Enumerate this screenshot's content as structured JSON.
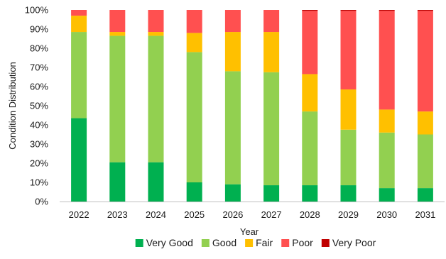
{
  "chart_data": {
    "type": "bar",
    "stacked": true,
    "xlabel": "Year",
    "ylabel": "Condition Distribution",
    "ylim": [
      0,
      100
    ],
    "y_ticks": [
      "0%",
      "10%",
      "20%",
      "30%",
      "40%",
      "50%",
      "60%",
      "70%",
      "80%",
      "90%",
      "100%"
    ],
    "grid": false,
    "legend_position": "bottom",
    "categories": [
      "2022",
      "2023",
      "2024",
      "2025",
      "2026",
      "2027",
      "2028",
      "2029",
      "2030",
      "2031"
    ],
    "series": [
      {
        "name": "Very Good",
        "color": "#00b050",
        "values": [
          43.5,
          20.5,
          20.5,
          10,
          9,
          8.5,
          8.5,
          8.5,
          7,
          7
        ]
      },
      {
        "name": "Good",
        "color": "#92d050",
        "values": [
          45.0,
          66.0,
          66.0,
          68,
          59,
          59.0,
          38.5,
          29.0,
          29,
          28
        ]
      },
      {
        "name": "Fair",
        "color": "#ffc000",
        "values": [
          8.5,
          2.0,
          2.0,
          10,
          20.5,
          21.0,
          19.5,
          21.0,
          12,
          12
        ]
      },
      {
        "name": "Poor",
        "color": "#ff5050",
        "values": [
          3.0,
          11.5,
          11.5,
          12,
          11.5,
          11.5,
          33.0,
          41.0,
          51.5,
          52.5
        ]
      },
      {
        "name": "Very Poor",
        "color": "#c00000",
        "values": [
          0,
          0,
          0,
          0,
          0,
          0,
          0.5,
          0.5,
          0.5,
          0.5
        ]
      }
    ]
  }
}
